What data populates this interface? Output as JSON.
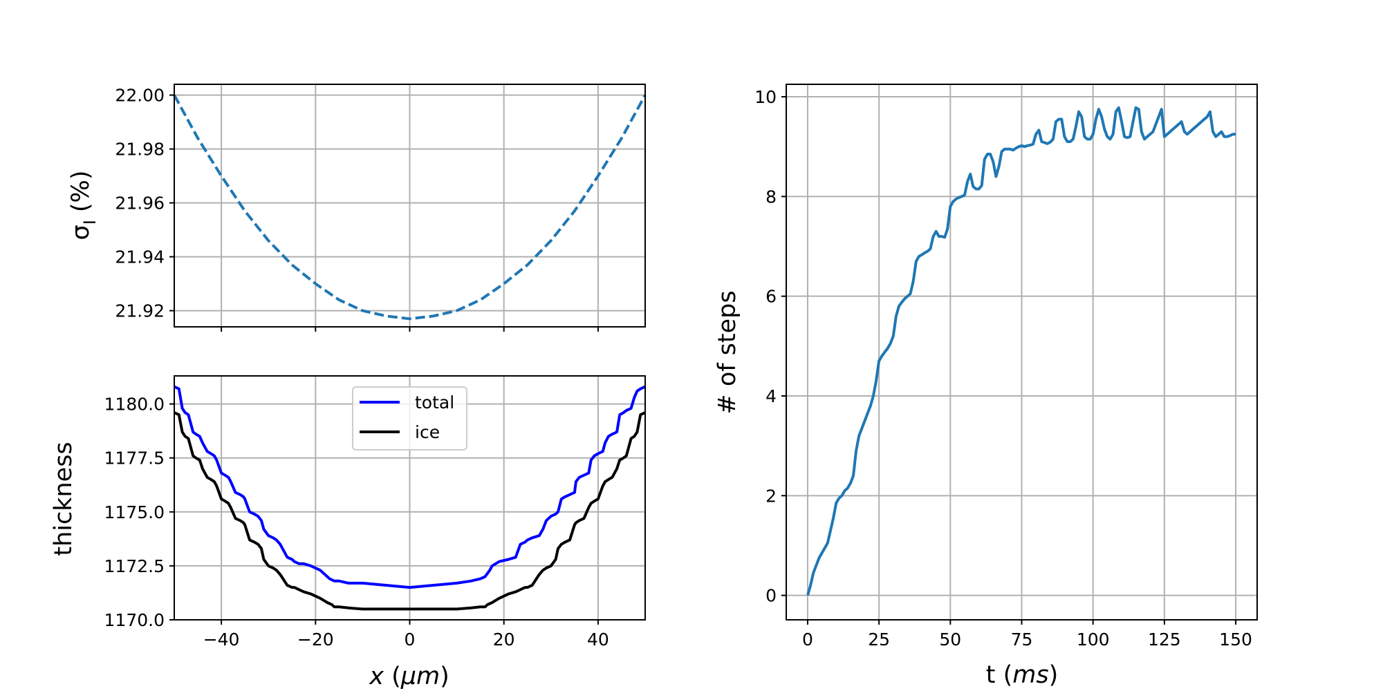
{
  "chart_data": [
    {
      "type": "line",
      "panel": "top-left",
      "title": "",
      "xlabel": "",
      "ylabel": "σ_I (%)",
      "ylabel_symbol": "σ",
      "ylabel_sub": "I",
      "ylabel_unit": " (%)",
      "xlim": [
        -50,
        50
      ],
      "ylim": [
        21.914,
        22.004
      ],
      "grid": true,
      "x_ticks": [
        -40,
        -20,
        0,
        20,
        40
      ],
      "y_ticks": [
        21.92,
        21.94,
        21.96,
        21.98,
        22.0
      ],
      "y_tick_labels": [
        "21.92",
        "21.94",
        "21.96",
        "21.98",
        "22.00"
      ],
      "series": [
        {
          "name": "sigma_I",
          "style": "dashed",
          "color": "#1f77b4",
          "x": [
            -50,
            -45,
            -40,
            -35,
            -30,
            -25,
            -20,
            -15,
            -10,
            -5,
            0,
            5,
            10,
            15,
            20,
            25,
            30,
            35,
            40,
            45,
            50
          ],
          "y": [
            22.0,
            21.984,
            21.97,
            21.957,
            21.946,
            21.937,
            21.93,
            21.924,
            21.92,
            21.918,
            21.917,
            21.918,
            21.92,
            21.924,
            21.93,
            21.937,
            21.946,
            21.957,
            21.97,
            21.984,
            22.0
          ]
        }
      ]
    },
    {
      "type": "line",
      "panel": "bottom-left",
      "title": "",
      "xlabel": "x (μm)",
      "xlabel_var": "x",
      "xlabel_unit_open": " (",
      "xlabel_unit": "μm",
      "xlabel_unit_close": ")",
      "ylabel": "thickness",
      "xlim": [
        -50,
        50
      ],
      "ylim": [
        1170.0,
        1181.3
      ],
      "grid": true,
      "x_ticks": [
        -40,
        -20,
        0,
        20,
        40
      ],
      "x_tick_labels": [
        "−40",
        "−20",
        "0",
        "20",
        "40"
      ],
      "y_ticks": [
        1170.0,
        1172.5,
        1175.0,
        1177.5,
        1180.0
      ],
      "y_tick_labels": [
        "1170.0",
        "1172.5",
        "1175.0",
        "1177.5",
        "1180.0"
      ],
      "legend": {
        "placement": "upper-center",
        "entries": [
          "total",
          "ice"
        ]
      },
      "series": [
        {
          "name": "total",
          "color": "#0000ff",
          "x": [
            -50,
            -49,
            -48.3,
            -47.7,
            -47,
            -46,
            -45.4,
            -44.6,
            -44,
            -43,
            -42.2,
            -41.5,
            -41,
            -40,
            -39.2,
            -38.5,
            -38,
            -37,
            -36,
            -35.3,
            -35,
            -34,
            -33,
            -32.2,
            -31.5,
            -31,
            -30,
            -29,
            -28.3,
            -27.5,
            -26,
            -25,
            -24.5,
            -23.5,
            -22.5,
            -21,
            -19,
            -17.5,
            -17,
            -16,
            -15,
            -13,
            -10,
            -5,
            0,
            5,
            10,
            13,
            15,
            16,
            17,
            17.5,
            19,
            21,
            22.5,
            23.5,
            24.5,
            25,
            26,
            27.5,
            28.3,
            29,
            30,
            31,
            31.5,
            32.2,
            33,
            34,
            35,
            35.3,
            36,
            37,
            38,
            38.5,
            39.2,
            40,
            41,
            41.5,
            42.2,
            43,
            44,
            44.6,
            45.4,
            46,
            47,
            47.7,
            48.3,
            49,
            50
          ],
          "y": [
            1180.8,
            1180.7,
            1179.8,
            1179.6,
            1179.5,
            1178.7,
            1178.6,
            1178.5,
            1178.2,
            1177.8,
            1177.7,
            1177.6,
            1177.4,
            1176.8,
            1176.7,
            1176.6,
            1176.4,
            1175.9,
            1175.8,
            1175.7,
            1175.6,
            1175.0,
            1174.9,
            1174.8,
            1174.6,
            1174.2,
            1173.9,
            1173.8,
            1173.7,
            1173.5,
            1172.9,
            1172.8,
            1172.7,
            1172.6,
            1172.6,
            1172.5,
            1172.3,
            1172.0,
            1171.9,
            1171.8,
            1171.8,
            1171.7,
            1171.7,
            1171.6,
            1171.5,
            1171.6,
            1171.7,
            1171.8,
            1171.9,
            1172.0,
            1172.3,
            1172.5,
            1172.7,
            1172.8,
            1172.9,
            1173.5,
            1173.6,
            1173.7,
            1173.8,
            1173.9,
            1174.2,
            1174.6,
            1174.8,
            1174.9,
            1175.0,
            1175.6,
            1175.7,
            1175.8,
            1175.9,
            1176.4,
            1176.6,
            1176.7,
            1176.8,
            1177.4,
            1177.6,
            1177.7,
            1177.8,
            1178.2,
            1178.5,
            1178.6,
            1178.7,
            1179.5,
            1179.6,
            1179.7,
            1179.8,
            1180.3,
            1180.6,
            1180.7,
            1180.8
          ]
        },
        {
          "name": "ice",
          "color": "#000000",
          "x": [
            -50,
            -49,
            -48.3,
            -47.7,
            -47,
            -46,
            -45.4,
            -44.6,
            -44,
            -43,
            -42.2,
            -41.5,
            -41,
            -40,
            -39.2,
            -38.5,
            -38,
            -37,
            -36,
            -35.3,
            -35,
            -34,
            -33,
            -32.2,
            -31.5,
            -31,
            -30,
            -29,
            -28.3,
            -27.5,
            -26,
            -25,
            -24.5,
            -23.5,
            -22.5,
            -21,
            -19,
            -17.5,
            -16.5,
            -16,
            -15,
            -13,
            -10,
            -5,
            0,
            5,
            10,
            13,
            15,
            16,
            16.5,
            17.5,
            19,
            21,
            22.5,
            23.5,
            24.5,
            25,
            26,
            27.5,
            28.3,
            29,
            30,
            31,
            31.5,
            32.2,
            33,
            34,
            35,
            35.3,
            36,
            37,
            38,
            38.5,
            39.2,
            40,
            41,
            41.5,
            42.2,
            43,
            44,
            44.6,
            45.4,
            46,
            47,
            47.7,
            48.3,
            49,
            50
          ],
          "y": [
            1179.6,
            1179.5,
            1178.7,
            1178.5,
            1178.4,
            1177.6,
            1177.5,
            1177.4,
            1177.0,
            1176.6,
            1176.5,
            1176.4,
            1176.2,
            1175.6,
            1175.5,
            1175.4,
            1175.2,
            1174.7,
            1174.6,
            1174.5,
            1174.4,
            1173.7,
            1173.6,
            1173.5,
            1173.3,
            1172.8,
            1172.5,
            1172.4,
            1172.3,
            1172.1,
            1171.6,
            1171.5,
            1171.5,
            1171.4,
            1171.3,
            1171.2,
            1171.0,
            1170.8,
            1170.7,
            1170.6,
            1170.6,
            1170.55,
            1170.5,
            1170.5,
            1170.5,
            1170.5,
            1170.5,
            1170.55,
            1170.6,
            1170.6,
            1170.7,
            1170.8,
            1171.0,
            1171.2,
            1171.3,
            1171.4,
            1171.5,
            1171.5,
            1171.6,
            1172.1,
            1172.3,
            1172.4,
            1172.5,
            1172.8,
            1173.3,
            1173.5,
            1173.6,
            1173.7,
            1174.4,
            1174.5,
            1174.6,
            1174.7,
            1175.2,
            1175.4,
            1175.5,
            1175.6,
            1176.2,
            1176.4,
            1176.5,
            1176.6,
            1177.0,
            1177.4,
            1177.5,
            1177.6,
            1178.4,
            1178.5,
            1178.7,
            1179.5,
            1179.6
          ]
        }
      ]
    },
    {
      "type": "line",
      "panel": "right",
      "title": "",
      "xlabel": "t (ms)",
      "xlabel_var": "t (",
      "xlabel_unit": "ms",
      "xlabel_close": ")",
      "ylabel": "# of steps",
      "xlim": [
        -7.5,
        157.5
      ],
      "ylim": [
        -0.49,
        10.25
      ],
      "grid": true,
      "x_ticks": [
        0,
        25,
        50,
        75,
        100,
        125,
        150
      ],
      "y_ticks": [
        0,
        2,
        4,
        6,
        8,
        10
      ],
      "series": [
        {
          "name": "steps",
          "color": "#1f77b4",
          "x": [
            0,
            1,
            2,
            3,
            4,
            5,
            6,
            7,
            8,
            9,
            10,
            11,
            12,
            13,
            14,
            15,
            16,
            17,
            18,
            19,
            20,
            21,
            22,
            23,
            24,
            25,
            26,
            27,
            28,
            29,
            30,
            31,
            32,
            33,
            34,
            35,
            36,
            37,
            38,
            39,
            40,
            41,
            42,
            43,
            44,
            45,
            46,
            47,
            48,
            49,
            50,
            51,
            52,
            53,
            54,
            55,
            56,
            57,
            58,
            59,
            60,
            61,
            62,
            63,
            64,
            65,
            66,
            67,
            68,
            69,
            70,
            71,
            72,
            73,
            74,
            75,
            76,
            77,
            78,
            79,
            80,
            81,
            82,
            83,
            84,
            85,
            86,
            87,
            88,
            89,
            90,
            91,
            92,
            93,
            94,
            95,
            96,
            97,
            98,
            99,
            100,
            101,
            102,
            103,
            104,
            105,
            106,
            107,
            108,
            109,
            110,
            111,
            112,
            113,
            114,
            115,
            116,
            117,
            118,
            119,
            120,
            121,
            122,
            123,
            124,
            125,
            126,
            127,
            128,
            129,
            130,
            131,
            132,
            133,
            134,
            135,
            136,
            137,
            138,
            139,
            140,
            141,
            142,
            143,
            144,
            145,
            146,
            147,
            148,
            149,
            150
          ],
          "y": [
            0.0,
            0.2,
            0.45,
            0.6,
            0.75,
            0.85,
            0.95,
            1.05,
            1.3,
            1.55,
            1.85,
            1.95,
            2.0,
            2.1,
            2.15,
            2.25,
            2.4,
            2.9,
            3.2,
            3.35,
            3.5,
            3.65,
            3.8,
            4.0,
            4.3,
            4.7,
            4.8,
            4.88,
            4.95,
            5.05,
            5.2,
            5.6,
            5.8,
            5.88,
            5.95,
            6.0,
            6.05,
            6.3,
            6.7,
            6.8,
            6.83,
            6.87,
            6.9,
            6.95,
            7.2,
            7.3,
            7.2,
            7.2,
            7.18,
            7.35,
            7.8,
            7.9,
            7.95,
            7.98,
            8.0,
            8.03,
            8.3,
            8.45,
            8.2,
            8.15,
            8.15,
            8.22,
            8.75,
            8.85,
            8.85,
            8.7,
            8.4,
            8.6,
            8.9,
            8.95,
            8.95,
            8.95,
            8.93,
            8.97,
            9.0,
            9.02,
            9.0,
            9.02,
            9.03,
            9.05,
            9.25,
            9.33,
            9.1,
            9.08,
            9.06,
            9.09,
            9.15,
            9.5,
            9.55,
            9.55,
            9.2,
            9.1,
            9.1,
            9.15,
            9.4,
            9.7,
            9.6,
            9.2,
            9.15,
            9.15,
            9.25,
            9.55,
            9.75,
            9.6,
            9.35,
            9.2,
            9.15,
            9.25,
            9.7,
            9.78,
            9.5,
            9.2,
            9.18,
            9.2,
            9.5,
            9.78,
            9.75,
            9.3,
            9.15,
            9.2,
            9.25,
            9.3,
            9.45,
            9.6,
            9.75,
            9.2,
            9.25,
            9.3,
            9.35,
            9.4,
            9.45,
            9.5,
            9.3,
            9.25,
            9.3,
            9.35,
            9.4,
            9.45,
            9.5,
            9.55,
            9.6,
            9.7,
            9.3,
            9.2,
            9.25,
            9.3,
            9.2,
            9.2,
            9.22,
            9.25,
            9.25
          ]
        }
      ]
    }
  ]
}
